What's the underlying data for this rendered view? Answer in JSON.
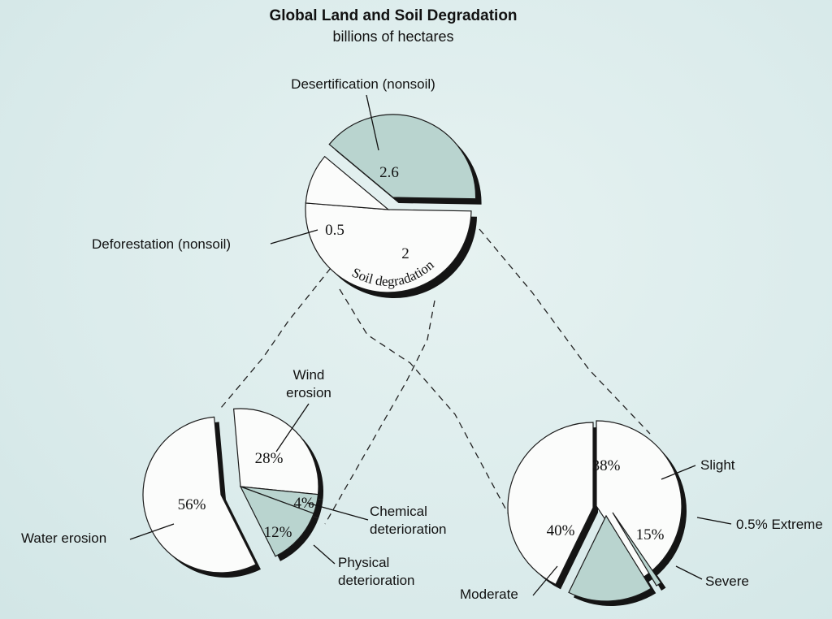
{
  "title": "Global Land and Soil Degradation",
  "subtitle": "billions of hectares",
  "colors": {
    "light": "#fbfcfb",
    "shaded": "#b9d4cf",
    "shadow": "#141414",
    "stroke": "#1a1a1a"
  },
  "chart_data": [
    {
      "type": "pie",
      "name": "top",
      "slices": [
        {
          "label": "Desertification (nonsoil)",
          "value": 2.6,
          "display": "2.6",
          "fill": "light"
        },
        {
          "label": "Deforestation (nonsoil)",
          "value": 0.5,
          "display": "0.5",
          "fill": "light"
        },
        {
          "label": "Soil degradation",
          "value": 2,
          "display": "2",
          "fill": "shaded",
          "exploded": true
        }
      ]
    },
    {
      "type": "pie",
      "name": "left",
      "slices": [
        {
          "label": "Wind erosion",
          "value": 28,
          "display": "28%",
          "fill": "light"
        },
        {
          "label": "Chemical deterioration",
          "value": 4,
          "display": "4%",
          "fill": "shaded"
        },
        {
          "label": "Physical deterioration",
          "value": 12,
          "display": "12%",
          "fill": "shaded"
        },
        {
          "label": "Water erosion",
          "value": 56,
          "display": "56%",
          "fill": "light"
        }
      ]
    },
    {
      "type": "pie",
      "name": "right",
      "slices": [
        {
          "label": "Slight",
          "value": 38,
          "display": "38%",
          "fill": "light"
        },
        {
          "label": "0.5% Extreme",
          "value": 0.5,
          "display": "",
          "fill": "shaded"
        },
        {
          "label": "Severe",
          "value": 15,
          "display": "15%",
          "fill": "shaded"
        },
        {
          "label": "Moderate",
          "value": 40,
          "display": "40%",
          "fill": "light"
        }
      ]
    }
  ]
}
